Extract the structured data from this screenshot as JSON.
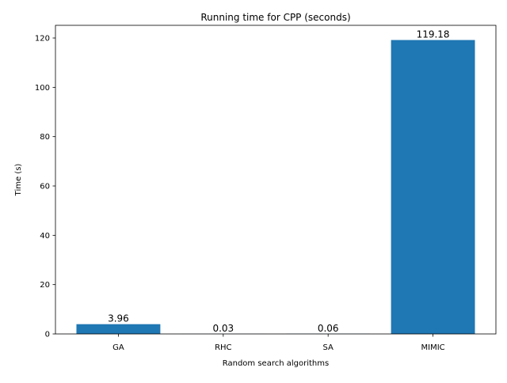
{
  "chart_data": {
    "type": "bar",
    "title": "Running time for CPP (seconds)",
    "xlabel": "Random search algorithms",
    "ylabel": "Time (s)",
    "categories": [
      "GA",
      "RHC",
      "SA",
      "MIMIC"
    ],
    "values": [
      3.96,
      0.03,
      0.06,
      119.18
    ],
    "value_labels": [
      "3.96",
      "0.03",
      "0.06",
      "119.18"
    ],
    "ylim": [
      0,
      125.14
    ],
    "yticks": [
      0,
      20,
      40,
      60,
      80,
      100,
      120
    ],
    "grid": false,
    "legend": "none",
    "bar_color": "#1f77b4"
  }
}
